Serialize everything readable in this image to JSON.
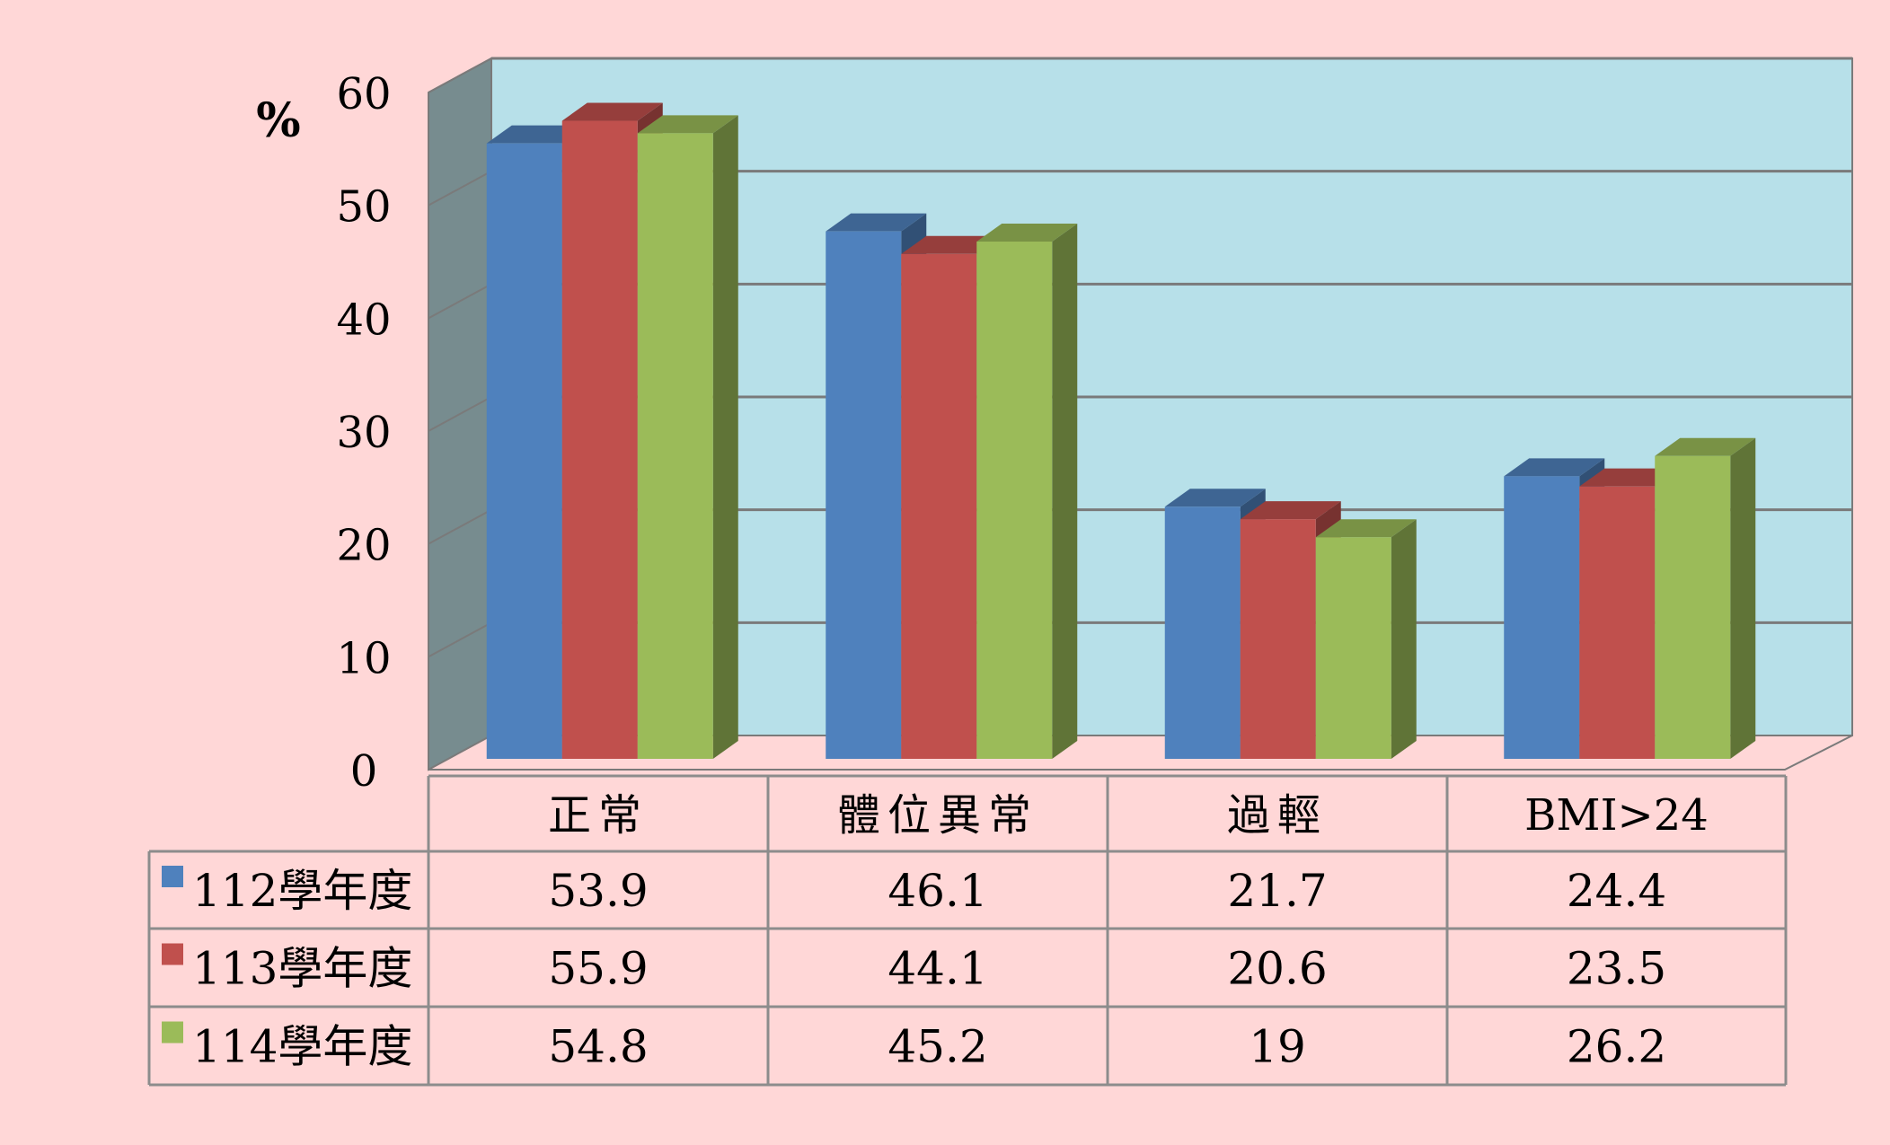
{
  "chart_data": {
    "type": "bar",
    "unit_label": "%",
    "ylim": [
      0,
      60
    ],
    "yticks": [
      0,
      10,
      20,
      30,
      40,
      50,
      60
    ],
    "grid": true,
    "three_d": true,
    "legend_placement": "data-table-left",
    "categories": [
      "正常",
      "體位異常",
      "過輕",
      "BMI>24"
    ],
    "series": [
      {
        "name": "112學年度",
        "color": "#4f81bd",
        "values": [
          53.9,
          46.1,
          21.7,
          24.4
        ]
      },
      {
        "name": "113學年度",
        "color": "#c0504d",
        "values": [
          55.9,
          44.1,
          20.6,
          23.5
        ]
      },
      {
        "name": "114學年度",
        "color": "#9bbb59",
        "values": [
          54.8,
          45.2,
          19,
          26.2
        ]
      }
    ],
    "table_values": [
      [
        "53.9",
        "46.1",
        "21.7",
        "24.4"
      ],
      [
        "55.9",
        "44.1",
        "20.6",
        "23.5"
      ],
      [
        "54.8",
        "45.2",
        "19",
        "26.2"
      ]
    ],
    "colors": {
      "page_background": "#ffd7d7",
      "plot_back_wall": "#b7e0e9",
      "plot_side_wall": "#778c8f",
      "floor": "#ffd7d7",
      "grid_line": "#7a7a7a",
      "table_border": "#8c8c8c"
    }
  }
}
